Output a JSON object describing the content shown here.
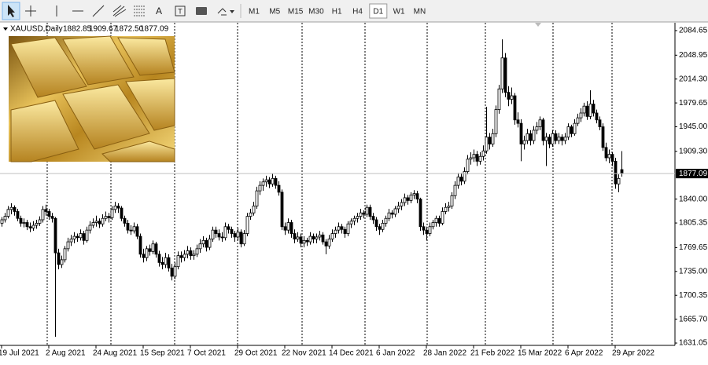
{
  "toolbar": {
    "text_tool": "A",
    "timeframes": [
      "M1",
      "M5",
      "M15",
      "M30",
      "H1",
      "H4",
      "D1",
      "W1",
      "MN"
    ],
    "active_timeframe": "D1"
  },
  "chart_data": {
    "type": "candlestick",
    "symbol": "XAUUSD,Daily",
    "last_bar_labels": [
      "1882.85",
      "1909.67",
      "1872.50",
      "1877.09"
    ],
    "bull_color": "#ffffff",
    "bear_color": "#000000",
    "wick_color": "#000000",
    "ylim": [
      1627.67,
      2096.02
    ],
    "yticks": [
      2084.65,
      2048.95,
      {
        "value": 2014.3,
        "label": "2014.30"
      },
      1979.65,
      {
        "value": 1945,
        "label": "1945.00"
      },
      {
        "value": 1909.3,
        "label": "1909.30"
      },
      {
        "value": 1840,
        "label": "1840.00"
      },
      1805.35,
      1769.65,
      {
        "value": 1735,
        "label": "1735.00"
      },
      1700.35,
      {
        "value": 1665.7,
        "label": "1665.70"
      },
      1631.05
    ],
    "categories": [
      "19 Jul 2021",
      null,
      null,
      null,
      null,
      null,
      null,
      null,
      null,
      null,
      null,
      null,
      null,
      null,
      null,
      "2 Aug 2021",
      null,
      null,
      null,
      null,
      null,
      null,
      null,
      null,
      null,
      null,
      null,
      null,
      null,
      null,
      "24 Aug 2021",
      null,
      null,
      null,
      null,
      null,
      null,
      null,
      null,
      null,
      null,
      null,
      null,
      null,
      null,
      "15 Sep 2021",
      null,
      null,
      null,
      null,
      null,
      null,
      null,
      null,
      null,
      null,
      null,
      null,
      null,
      null,
      "7 Oct 2021",
      null,
      null,
      null,
      null,
      null,
      null,
      null,
      null,
      null,
      null,
      null,
      null,
      null,
      null,
      "29 Oct 2021",
      null,
      null,
      null,
      null,
      null,
      null,
      null,
      null,
      null,
      null,
      null,
      null,
      null,
      null,
      "22 Nov 2021",
      null,
      null,
      null,
      null,
      null,
      null,
      null,
      null,
      null,
      null,
      null,
      null,
      null,
      null,
      "14 Dec 2021",
      null,
      null,
      null,
      null,
      null,
      null,
      null,
      null,
      null,
      null,
      null,
      null,
      null,
      null,
      "6 Jan 2022",
      null,
      null,
      null,
      null,
      null,
      null,
      null,
      null,
      null,
      null,
      null,
      null,
      null,
      null,
      "28 Jan 2022",
      null,
      null,
      null,
      null,
      null,
      null,
      null,
      null,
      null,
      null,
      null,
      null,
      null,
      null,
      "21 Feb 2022",
      null,
      null,
      null,
      null,
      null,
      null,
      null,
      null,
      null,
      null,
      null,
      null,
      null,
      null,
      "15 Mar 2022",
      null,
      null,
      null,
      null,
      null,
      null,
      null,
      null,
      null,
      null,
      null,
      null,
      null,
      null,
      "6 Apr 2022",
      null,
      null,
      null,
      null,
      null,
      null,
      null,
      null,
      null,
      null,
      null,
      null,
      null,
      null,
      "29 Apr 2022",
      null,
      null
    ],
    "candles": [
      [
        1805,
        1814,
        1800,
        1810
      ],
      [
        1810,
        1820,
        1806,
        1815
      ],
      [
        1815,
        1830,
        1812,
        1825
      ],
      [
        1825,
        1834,
        1818,
        1828
      ],
      [
        1828,
        1831,
        1816,
        1822
      ],
      [
        1822,
        1826,
        1808,
        1812
      ],
      [
        1812,
        1816,
        1800,
        1805
      ],
      [
        1805,
        1812,
        1799,
        1806
      ],
      [
        1806,
        1810,
        1795,
        1800
      ],
      [
        1800,
        1806,
        1792,
        1798
      ],
      [
        1798,
        1808,
        1794,
        1802
      ],
      [
        1802,
        1810,
        1797,
        1805
      ],
      [
        1805,
        1815,
        1801,
        1810
      ],
      [
        1810,
        1830,
        1806,
        1825
      ],
      [
        1825,
        1832,
        1816,
        1822
      ],
      [
        1822,
        1826,
        1810,
        1815
      ],
      [
        1815,
        1820,
        1806,
        1812
      ],
      [
        1812,
        1814,
        1640,
        1762
      ],
      [
        1762,
        1768,
        1738,
        1745
      ],
      [
        1745,
        1758,
        1740,
        1752
      ],
      [
        1752,
        1772,
        1748,
        1768
      ],
      [
        1768,
        1784,
        1764,
        1778
      ],
      [
        1778,
        1788,
        1772,
        1782
      ],
      [
        1782,
        1792,
        1776,
        1786
      ],
      [
        1786,
        1790,
        1778,
        1784
      ],
      [
        1784,
        1796,
        1780,
        1790
      ],
      [
        1790,
        1794,
        1774,
        1780
      ],
      [
        1780,
        1800,
        1777,
        1795
      ],
      [
        1795,
        1808,
        1790,
        1802
      ],
      [
        1802,
        1812,
        1798,
        1806
      ],
      [
        1806,
        1816,
        1800,
        1808
      ],
      [
        1808,
        1812,
        1798,
        1804
      ],
      [
        1804,
        1818,
        1800,
        1812
      ],
      [
        1812,
        1822,
        1808,
        1815
      ],
      [
        1815,
        1820,
        1806,
        1813
      ],
      [
        1813,
        1830,
        1810,
        1825
      ],
      [
        1825,
        1836,
        1820,
        1830
      ],
      [
        1830,
        1834,
        1820,
        1827
      ],
      [
        1827,
        1830,
        1808,
        1812
      ],
      [
        1812,
        1816,
        1800,
        1805
      ],
      [
        1805,
        1810,
        1790,
        1795
      ],
      [
        1795,
        1802,
        1788,
        1794
      ],
      [
        1794,
        1806,
        1790,
        1800
      ],
      [
        1800,
        1804,
        1782,
        1786
      ],
      [
        1786,
        1790,
        1755,
        1760
      ],
      [
        1760,
        1768,
        1748,
        1755
      ],
      [
        1755,
        1772,
        1750,
        1768
      ],
      [
        1768,
        1774,
        1758,
        1764
      ],
      [
        1764,
        1780,
        1760,
        1775
      ],
      [
        1775,
        1778,
        1755,
        1760
      ],
      [
        1760,
        1765,
        1742,
        1748
      ],
      [
        1748,
        1756,
        1738,
        1745
      ],
      [
        1745,
        1762,
        1740,
        1755
      ],
      [
        1755,
        1760,
        1735,
        1740
      ],
      [
        1740,
        1746,
        1722,
        1728
      ],
      [
        1728,
        1748,
        1724,
        1742
      ],
      [
        1742,
        1764,
        1738,
        1758
      ],
      [
        1758,
        1764,
        1748,
        1755
      ],
      [
        1755,
        1766,
        1750,
        1760
      ],
      [
        1760,
        1772,
        1754,
        1765
      ],
      [
        1765,
        1770,
        1752,
        1758
      ],
      [
        1758,
        1766,
        1752,
        1760
      ],
      [
        1760,
        1774,
        1756,
        1768
      ],
      [
        1768,
        1782,
        1762,
        1775
      ],
      [
        1775,
        1786,
        1770,
        1780
      ],
      [
        1780,
        1784,
        1764,
        1770
      ],
      [
        1770,
        1788,
        1766,
        1782
      ],
      [
        1782,
        1800,
        1778,
        1795
      ],
      [
        1795,
        1800,
        1784,
        1790
      ],
      [
        1790,
        1796,
        1780,
        1785
      ],
      [
        1785,
        1792,
        1778,
        1784
      ],
      [
        1784,
        1806,
        1780,
        1800
      ],
      [
        1800,
        1804,
        1790,
        1796
      ],
      [
        1796,
        1800,
        1784,
        1790
      ],
      [
        1790,
        1794,
        1778,
        1785
      ],
      [
        1785,
        1798,
        1780,
        1792
      ],
      [
        1792,
        1796,
        1770,
        1775
      ],
      [
        1775,
        1795,
        1772,
        1790
      ],
      [
        1790,
        1820,
        1786,
        1815
      ],
      [
        1815,
        1826,
        1810,
        1820
      ],
      [
        1820,
        1836,
        1816,
        1830
      ],
      [
        1830,
        1858,
        1826,
        1852
      ],
      [
        1852,
        1866,
        1846,
        1860
      ],
      [
        1860,
        1870,
        1852,
        1865
      ],
      [
        1865,
        1874,
        1858,
        1868
      ],
      [
        1868,
        1872,
        1856,
        1862
      ],
      [
        1862,
        1877,
        1858,
        1870
      ],
      [
        1870,
        1874,
        1855,
        1860
      ],
      [
        1860,
        1866,
        1845,
        1850
      ],
      [
        1850,
        1854,
        1795,
        1800
      ],
      [
        1800,
        1806,
        1788,
        1795
      ],
      [
        1795,
        1812,
        1790,
        1806
      ],
      [
        1806,
        1810,
        1784,
        1790
      ],
      [
        1790,
        1796,
        1776,
        1782
      ],
      [
        1782,
        1792,
        1778,
        1785
      ],
      [
        1785,
        1790,
        1770,
        1776
      ],
      [
        1776,
        1786,
        1770,
        1780
      ],
      [
        1780,
        1784,
        1772,
        1778
      ],
      [
        1778,
        1792,
        1774,
        1786
      ],
      [
        1786,
        1790,
        1776,
        1782
      ],
      [
        1782,
        1790,
        1776,
        1785
      ],
      [
        1785,
        1794,
        1780,
        1788
      ],
      [
        1788,
        1792,
        1774,
        1778
      ],
      [
        1778,
        1782,
        1760,
        1772
      ],
      [
        1772,
        1788,
        1768,
        1782
      ],
      [
        1782,
        1796,
        1778,
        1790
      ],
      [
        1790,
        1800,
        1784,
        1795
      ],
      [
        1795,
        1806,
        1790,
        1800
      ],
      [
        1800,
        1804,
        1790,
        1796
      ],
      [
        1796,
        1800,
        1784,
        1790
      ],
      [
        1790,
        1808,
        1786,
        1804
      ],
      [
        1804,
        1812,
        1798,
        1808
      ],
      [
        1808,
        1816,
        1802,
        1812
      ],
      [
        1812,
        1820,
        1806,
        1815
      ],
      [
        1815,
        1826,
        1810,
        1820
      ],
      [
        1820,
        1824,
        1812,
        1818
      ],
      [
        1818,
        1832,
        1814,
        1828
      ],
      [
        1828,
        1832,
        1810,
        1815
      ],
      [
        1815,
        1820,
        1804,
        1810
      ],
      [
        1810,
        1814,
        1794,
        1800
      ],
      [
        1800,
        1804,
        1788,
        1796
      ],
      [
        1796,
        1810,
        1792,
        1805
      ],
      [
        1805,
        1816,
        1800,
        1812
      ],
      [
        1812,
        1826,
        1808,
        1820
      ],
      [
        1820,
        1824,
        1812,
        1818
      ],
      [
        1818,
        1830,
        1814,
        1826
      ],
      [
        1826,
        1836,
        1820,
        1830
      ],
      [
        1830,
        1840,
        1824,
        1835
      ],
      [
        1835,
        1848,
        1830,
        1842
      ],
      [
        1842,
        1846,
        1832,
        1838
      ],
      [
        1838,
        1850,
        1834,
        1846
      ],
      [
        1846,
        1853,
        1840,
        1848
      ],
      [
        1848,
        1852,
        1834,
        1840
      ],
      [
        1840,
        1842,
        1794,
        1800
      ],
      [
        1800,
        1806,
        1788,
        1795
      ],
      [
        1795,
        1800,
        1780,
        1790
      ],
      [
        1790,
        1806,
        1786,
        1800
      ],
      [
        1800,
        1810,
        1796,
        1806
      ],
      [
        1806,
        1816,
        1800,
        1812
      ],
      [
        1812,
        1816,
        1800,
        1805
      ],
      [
        1805,
        1828,
        1802,
        1822
      ],
      [
        1822,
        1834,
        1818,
        1828
      ],
      [
        1828,
        1836,
        1822,
        1830
      ],
      [
        1830,
        1850,
        1826,
        1845
      ],
      [
        1845,
        1866,
        1840,
        1860
      ],
      [
        1860,
        1878,
        1855,
        1872
      ],
      [
        1872,
        1878,
        1860,
        1866
      ],
      [
        1866,
        1886,
        1862,
        1880
      ],
      [
        1880,
        1904,
        1876,
        1898
      ],
      [
        1898,
        1908,
        1890,
        1900
      ],
      [
        1900,
        1912,
        1894,
        1905
      ],
      [
        1905,
        1910,
        1888,
        1895
      ],
      [
        1895,
        1908,
        1890,
        1902
      ],
      [
        1902,
        1918,
        1896,
        1910
      ],
      [
        1910,
        1974,
        1906,
        1930
      ],
      [
        1930,
        1936,
        1912,
        1920
      ],
      [
        1920,
        1942,
        1916,
        1935
      ],
      [
        1935,
        1976,
        1930,
        1970
      ],
      [
        1970,
        2006,
        1964,
        2000
      ],
      [
        2000,
        2072,
        1994,
        2045
      ],
      [
        2045,
        2052,
        1988,
        1995
      ],
      [
        1995,
        2004,
        1975,
        1985
      ],
      [
        1985,
        2002,
        1978,
        1990
      ],
      [
        1990,
        1994,
        1948,
        1955
      ],
      [
        1955,
        1966,
        1944,
        1950
      ],
      [
        1950,
        1956,
        1895,
        1920
      ],
      [
        1920,
        1932,
        1912,
        1925
      ],
      [
        1925,
        1942,
        1920,
        1935
      ],
      [
        1935,
        1940,
        1918,
        1925
      ],
      [
        1925,
        1946,
        1920,
        1940
      ],
      [
        1940,
        1952,
        1934,
        1945
      ],
      [
        1945,
        1960,
        1940,
        1955
      ],
      [
        1955,
        1958,
        1918,
        1925
      ],
      [
        1925,
        1936,
        1888,
        1930
      ],
      [
        1930,
        1934,
        1914,
        1920
      ],
      [
        1920,
        1940,
        1916,
        1935
      ],
      [
        1935,
        1940,
        1920,
        1925
      ],
      [
        1925,
        1936,
        1920,
        1930
      ],
      [
        1930,
        1934,
        1918,
        1925
      ],
      [
        1925,
        1936,
        1920,
        1930
      ],
      [
        1930,
        1950,
        1926,
        1945
      ],
      [
        1945,
        1948,
        1930,
        1935
      ],
      [
        1935,
        1956,
        1932,
        1950
      ],
      [
        1950,
        1964,
        1946,
        1958
      ],
      [
        1958,
        1972,
        1952,
        1965
      ],
      [
        1965,
        1980,
        1960,
        1975
      ],
      [
        1975,
        1982,
        1955,
        1960
      ],
      [
        1960,
        1998,
        1956,
        1978
      ],
      [
        1978,
        1984,
        1960,
        1965
      ],
      [
        1965,
        1970,
        1950,
        1955
      ],
      [
        1955,
        1960,
        1940,
        1945
      ],
      [
        1945,
        1950,
        1910,
        1915
      ],
      [
        1915,
        1922,
        1895,
        1900
      ],
      [
        1900,
        1912,
        1892,
        1905
      ],
      [
        1905,
        1908,
        1888,
        1895
      ],
      [
        1895,
        1900,
        1855,
        1862
      ],
      [
        1862,
        1876,
        1850,
        1870
      ],
      [
        1882.85,
        1909.67,
        1872.5,
        1877.09
      ]
    ]
  }
}
